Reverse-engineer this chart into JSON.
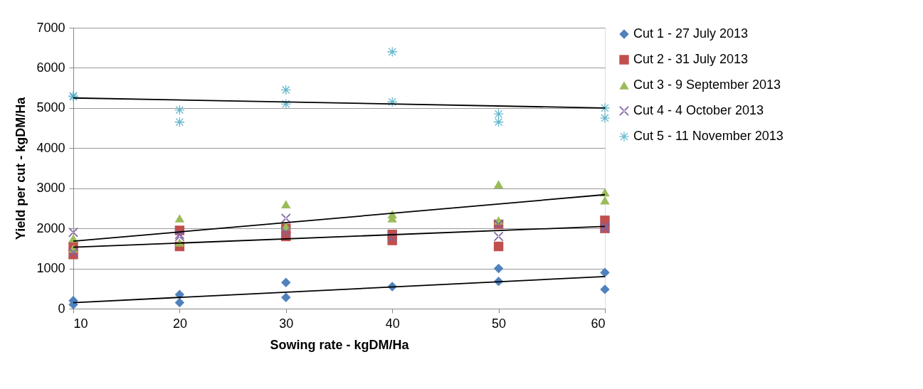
{
  "chart_data": {
    "type": "scatter",
    "xlabel": "Sowing rate - kgDM/Ha",
    "ylabel": "Yield per cut - kgDM/Ha",
    "xlim": [
      10,
      60
    ],
    "xticks": [
      10,
      20,
      30,
      40,
      50,
      60
    ],
    "ylim": [
      0,
      7000
    ],
    "yticks": [
      0,
      1000,
      2000,
      3000,
      4000,
      5000,
      6000,
      7000
    ],
    "grid": "y",
    "legend": "right",
    "series": [
      {
        "name": "Cut 1 - 27 July 2013",
        "color": "#4f81bd",
        "marker": "diamond",
        "x": [
          10,
          10,
          20,
          20,
          30,
          30,
          40,
          50,
          50,
          60,
          60
        ],
        "values": [
          200,
          100,
          350,
          150,
          650,
          280,
          550,
          1000,
          680,
          900,
          480
        ]
      },
      {
        "name": "Cut 2 - 31 July 2013",
        "color": "#c0504d",
        "marker": "square",
        "x": [
          10,
          10,
          20,
          20,
          30,
          30,
          40,
          40,
          50,
          50,
          60,
          60
        ],
        "values": [
          1550,
          1350,
          1950,
          1550,
          2000,
          1800,
          1850,
          1700,
          2100,
          1550,
          2200,
          2000
        ]
      },
      {
        "name": "Cut 3 - 9 September 2013",
        "color": "#9bbb59",
        "marker": "triangle",
        "x": [
          10,
          10,
          20,
          20,
          30,
          30,
          40,
          40,
          50,
          50,
          60,
          60
        ],
        "values": [
          1750,
          1500,
          2250,
          1650,
          2600,
          2050,
          2350,
          2250,
          3100,
          2200,
          2900,
          2700
        ]
      },
      {
        "name": "Cut 4 - 4 October 2013",
        "color": "#8064a2",
        "marker": "cross",
        "x": [
          10,
          10,
          20,
          20,
          30,
          30,
          40,
          50,
          50,
          60,
          60
        ],
        "values": [
          1900,
          1400,
          1850,
          1800,
          2250,
          1900,
          1780,
          2100,
          1800,
          2050,
          2000
        ]
      },
      {
        "name": "Cut 5 - 11 November 2013",
        "color": "#4bacc6",
        "marker": "star",
        "x": [
          10,
          10,
          20,
          20,
          30,
          30,
          40,
          40,
          50,
          50,
          60,
          60
        ],
        "values": [
          5300,
          5280,
          4950,
          4650,
          5450,
          5100,
          6400,
          5150,
          4850,
          4650,
          5000,
          4750
        ]
      },
      {
        "type": "line",
        "color": "#000000",
        "x": [
          10,
          60
        ],
        "values": [
          150,
          800
        ]
      },
      {
        "type": "line",
        "color": "#000000",
        "x": [
          10,
          60
        ],
        "values": [
          1530,
          2050
        ]
      },
      {
        "type": "line",
        "color": "#000000",
        "x": [
          10,
          60
        ],
        "values": [
          1680,
          2840
        ]
      },
      {
        "type": "line",
        "color": "#000000",
        "x": [
          10,
          60
        ],
        "values": [
          5250,
          5000
        ]
      }
    ]
  }
}
